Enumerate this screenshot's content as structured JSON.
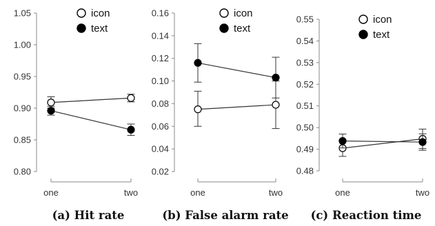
{
  "chart_data": [
    {
      "type": "line",
      "caption": "(a) Hit rate",
      "categories": [
        "one",
        "two"
      ],
      "ylim": [
        0.8,
        1.05
      ],
      "yticks": [
        0.8,
        0.85,
        0.9,
        0.95,
        1.0,
        1.05
      ],
      "ytick_labels": [
        "0.80",
        "0.85",
        "0.90",
        "0.95",
        "1.00",
        "1.05"
      ],
      "legend_position": "top-center",
      "series": [
        {
          "name": "icon",
          "marker": "open-circle",
          "values": [
            0.909,
            0.916
          ],
          "err_low": [
            0.9,
            0.91
          ],
          "err_high": [
            0.918,
            0.922
          ]
        },
        {
          "name": "text",
          "marker": "filled-circle",
          "values": [
            0.896,
            0.866
          ],
          "err_low": [
            0.889,
            0.857
          ],
          "err_high": [
            0.903,
            0.875
          ]
        }
      ]
    },
    {
      "type": "line",
      "caption": "(b) False alarm rate",
      "categories": [
        "one",
        "two"
      ],
      "ylim": [
        0.02,
        0.16
      ],
      "yticks": [
        0.02,
        0.04,
        0.06,
        0.08,
        0.1,
        0.12,
        0.14,
        0.16
      ],
      "ytick_labels": [
        "0.02",
        "0.04",
        "0.06",
        "0.08",
        "0.10",
        "0.12",
        "0.14",
        "0.16"
      ],
      "legend_position": "top-center",
      "series": [
        {
          "name": "icon",
          "marker": "open-circle",
          "values": [
            0.075,
            0.079
          ],
          "err_low": [
            0.06,
            0.058
          ],
          "err_high": [
            0.091,
            0.1
          ]
        },
        {
          "name": "text",
          "marker": "filled-circle",
          "values": [
            0.116,
            0.103
          ],
          "err_low": [
            0.099,
            0.085
          ],
          "err_high": [
            0.133,
            0.121
          ]
        }
      ]
    },
    {
      "type": "line",
      "caption": "(c) Reaction time",
      "categories": [
        "one",
        "two"
      ],
      "ylim": [
        0.48,
        0.55
      ],
      "yticks": [
        0.48,
        0.49,
        0.5,
        0.51,
        0.52,
        0.53,
        0.54,
        0.55
      ],
      "ytick_labels": [
        "0.48",
        "0.49",
        "0.50",
        "0.51",
        "0.52",
        "0.53",
        "0.54",
        "0.55"
      ],
      "legend_position": "top-center",
      "series": [
        {
          "name": "icon",
          "marker": "open-circle",
          "values": [
            0.4905,
            0.4948
          ],
          "err_low": [
            0.4867,
            0.4903
          ],
          "err_high": [
            0.4943,
            0.4993
          ]
        },
        {
          "name": "text",
          "marker": "filled-circle",
          "values": [
            0.4938,
            0.4933
          ],
          "err_low": [
            0.4906,
            0.4895
          ],
          "err_high": [
            0.497,
            0.4971
          ]
        }
      ]
    }
  ],
  "colors": {
    "line": "#333333",
    "axis": "#888888",
    "marker_fill_text": "#000000",
    "marker_fill_icon": "#ffffff",
    "text": "#111111"
  }
}
